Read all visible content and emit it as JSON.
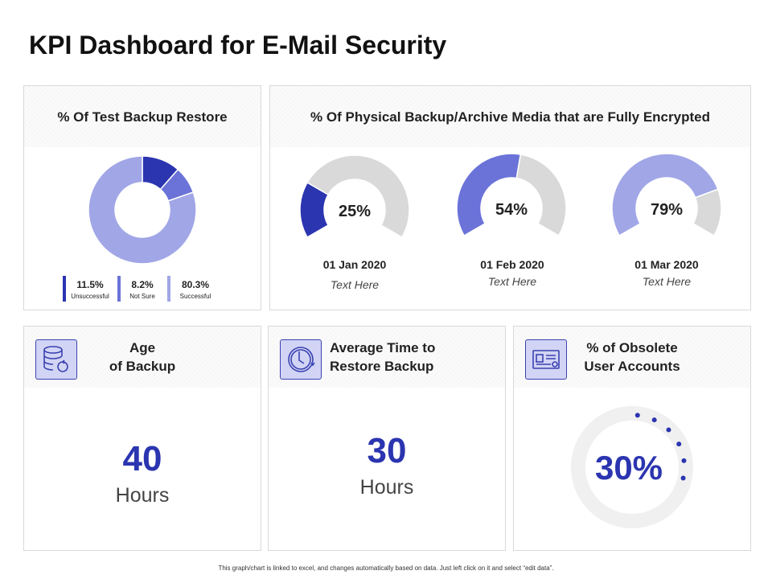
{
  "title": "KPI Dashboard for E-Mail Security",
  "colors": {
    "dark": "#2b35b0",
    "medium": "#6b73d8",
    "light": "#a0a6e6",
    "gray": "#d9d9d9"
  },
  "restore": {
    "title": "% Of Test Backup Restore",
    "chart_data": {
      "type": "pie",
      "values": [
        11.5,
        8.2,
        80.3
      ],
      "labels": [
        "Unsuccessful",
        "Not Sure",
        "Successful"
      ],
      "value_labels": [
        "11.5%",
        "8.2%",
        "80.3%"
      ]
    }
  },
  "encrypted": {
    "title": "% Of Physical Backup/Archive Media that are Fully Encrypted",
    "gauges": [
      {
        "value": 25,
        "label": "25%",
        "date": "01 Jan 2020",
        "text": "Text Here"
      },
      {
        "value": 54,
        "label": "54%",
        "date": "01 Feb 2020",
        "text": "Text Here"
      },
      {
        "value": 79,
        "label": "79%",
        "date": "01 Mar 2020",
        "text": "Text Here"
      }
    ]
  },
  "age": {
    "title_line1": "Age",
    "title_line2": "of Backup",
    "value": "40",
    "unit": "Hours",
    "icon": "database-restore-icon"
  },
  "avg": {
    "title_line1": "Average Time to",
    "title_line2": "Restore Backup",
    "value": "30",
    "unit": "Hours",
    "icon": "clock-restore-icon"
  },
  "obsolete": {
    "title_line1": "% of Obsolete",
    "title_line2": "User Accounts",
    "value": 30,
    "label": "30%",
    "icon": "id-card-icon"
  },
  "footer": "This graph/chart is linked to excel, and changes automatically based on data. Just left click on it and select “edit data”."
}
